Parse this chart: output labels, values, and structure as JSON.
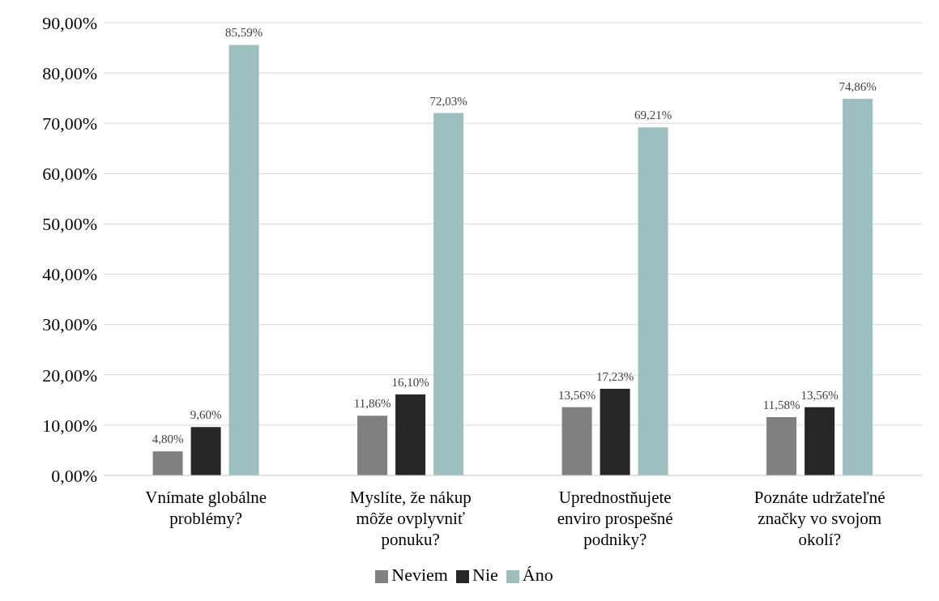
{
  "chart_data": {
    "type": "bar",
    "categories": [
      "Vnímate globálne problémy?",
      "Myslíte, že nákup môže ovplyvniť ponuku?",
      "Uprednostňujete enviro prospešné podniky?",
      "Poznáte udržateľné značky vo svojom okolí?"
    ],
    "series": [
      {
        "name": "Neviem",
        "color": "#808080",
        "values": [
          4.8,
          11.86,
          13.56,
          11.58
        ],
        "value_labels": [
          "4,80%",
          "11,86%",
          "13,56%",
          "11,58%"
        ]
      },
      {
        "name": "Nie",
        "color": "#262626",
        "values": [
          9.6,
          16.1,
          17.23,
          13.56
        ],
        "value_labels": [
          "9,60%",
          "16,10%",
          "17,23%",
          "13,56%"
        ]
      },
      {
        "name": "Áno",
        "color": "#9dbfbf",
        "values": [
          85.59,
          72.03,
          69.21,
          74.86
        ],
        "value_labels": [
          "85,59%",
          "72,03%",
          "69,21%",
          "74,86%"
        ]
      }
    ],
    "ylim": [
      0,
      90
    ],
    "yticks": [
      {
        "value": 0,
        "label": "0,00%"
      },
      {
        "value": 10,
        "label": "10,00%"
      },
      {
        "value": 20,
        "label": "20,00%"
      },
      {
        "value": 30,
        "label": "30,00%"
      },
      {
        "value": 40,
        "label": "40,00%"
      },
      {
        "value": 50,
        "label": "50,00%"
      },
      {
        "value": 60,
        "label": "60,00%"
      },
      {
        "value": 70,
        "label": "70,00%"
      },
      {
        "value": 80,
        "label": "80,00%"
      },
      {
        "value": 90,
        "label": "90,00%"
      }
    ],
    "grid": "y",
    "legend": "bottom"
  }
}
